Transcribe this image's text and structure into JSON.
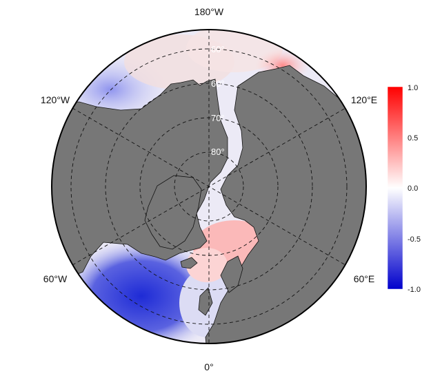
{
  "map": {
    "longitude_labels": {
      "top": "180°W",
      "upper_left": "120°W",
      "upper_right": "120°E",
      "lower_left": "60°W",
      "lower_right": "60°E",
      "bottom": "0°"
    },
    "latitude_labels": [
      "60°",
      "60°",
      "70°",
      "80°"
    ],
    "colors": {
      "land": "#777777",
      "negative": "#0000cc",
      "neutral": "#ffffff",
      "positive": "#ff0000"
    }
  },
  "colorbar": {
    "min": -1.0,
    "max": 1.0,
    "tick_labels": [
      "1.0",
      "0.5",
      "0.0",
      "-0.5",
      "-1.0"
    ]
  }
}
